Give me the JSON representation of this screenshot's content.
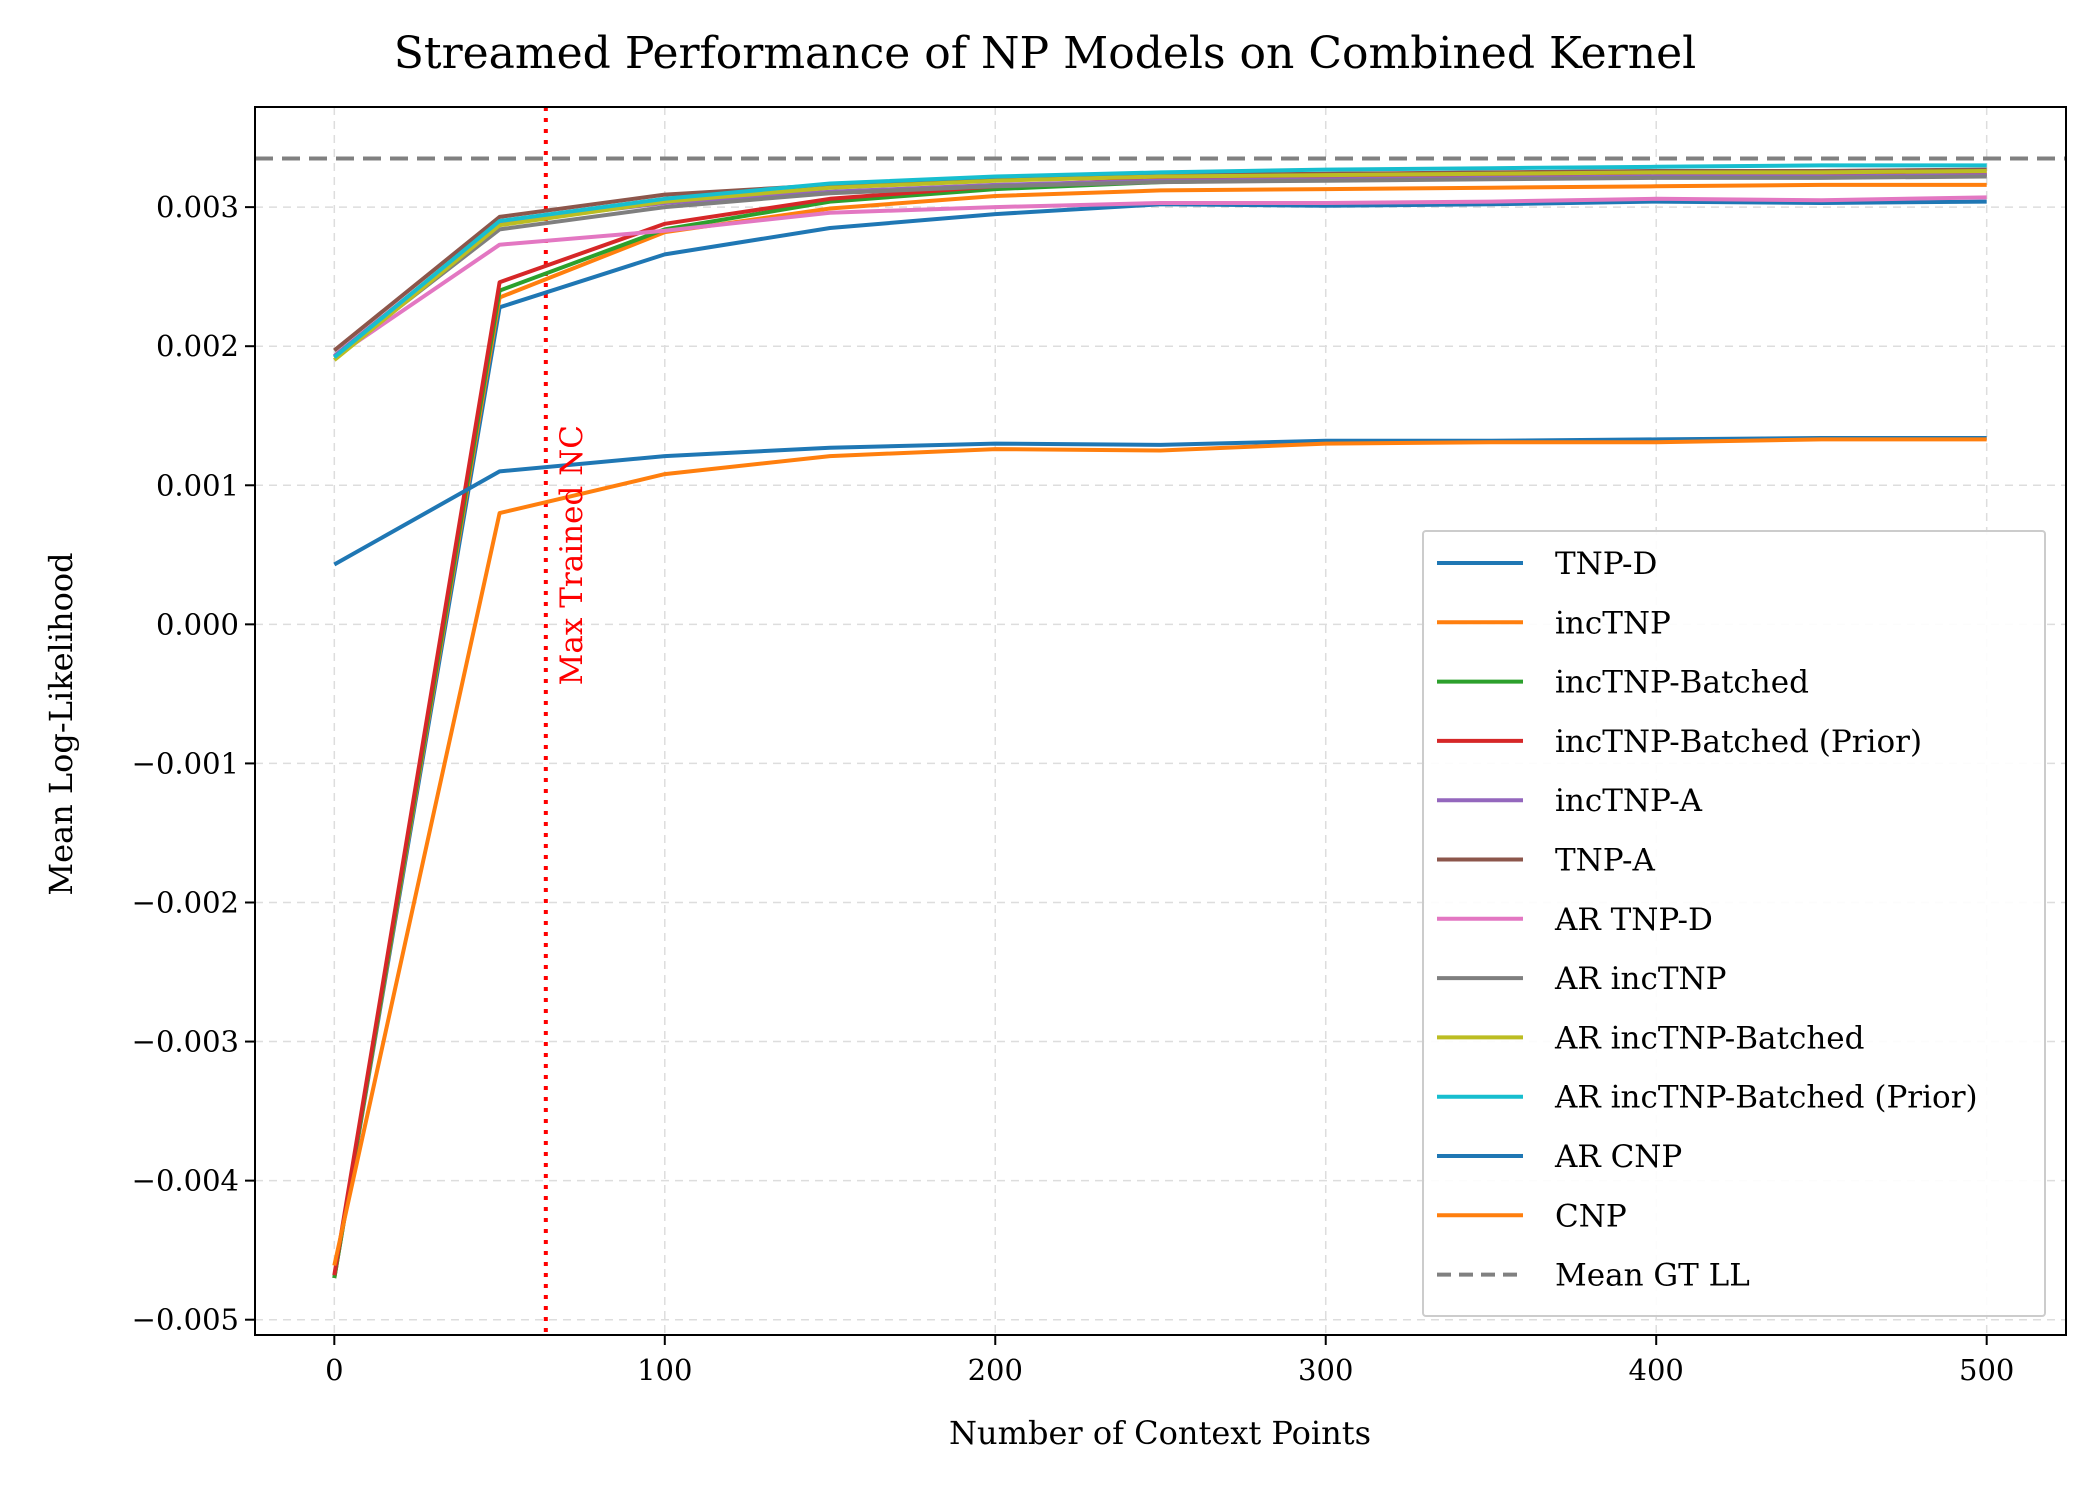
{
  "chart_data": {
    "type": "line",
    "title": "Streamed Performance of NP Models on Combined Kernel",
    "xlabel": "Number of Context Points",
    "ylabel": "Mean Log-Likelihood",
    "xlim": [
      -24,
      524
    ],
    "ylim": [
      -0.00511,
      0.00372
    ],
    "x_ticks": [
      0,
      100,
      200,
      300,
      400,
      500
    ],
    "x_tick_labels": [
      "0",
      "100",
      "200",
      "300",
      "400",
      "500"
    ],
    "y_ticks": [
      -0.005,
      -0.004,
      -0.003,
      -0.002,
      -0.001,
      0.0,
      0.001,
      0.002,
      0.003
    ],
    "y_tick_labels": [
      "−0.005",
      "−0.004",
      "−0.003",
      "−0.002",
      "−0.001",
      "0.000",
      "0.001",
      "0.002",
      "0.003"
    ],
    "grid": true,
    "legend_position": "lower-right",
    "x": [
      0,
      50,
      100,
      150,
      200,
      250,
      300,
      350,
      400,
      450,
      500
    ],
    "series": [
      {
        "name": "TNP-D",
        "color": "#1f77b4",
        "values": [
          -0.0047,
          0.00228,
          0.00266,
          0.00285,
          0.00295,
          0.00302,
          0.00301,
          0.00302,
          0.00304,
          0.00303,
          0.00304
        ]
      },
      {
        "name": "incTNP",
        "color": "#ff7f0e",
        "values": [
          -0.0047,
          0.00235,
          0.00282,
          0.00299,
          0.00308,
          0.00312,
          0.00313,
          0.00314,
          0.00315,
          0.00316,
          0.00316
        ]
      },
      {
        "name": "incTNP-Batched",
        "color": "#2ca02c",
        "values": [
          -0.0047,
          0.0024,
          0.00284,
          0.00304,
          0.00313,
          0.00318,
          0.0032,
          0.00321,
          0.00322,
          0.00322,
          0.00323
        ]
      },
      {
        "name": "incTNP-Batched (Prior)",
        "color": "#d62728",
        "values": [
          -0.00468,
          0.00246,
          0.00288,
          0.00306,
          0.00315,
          0.0032,
          0.00321,
          0.00322,
          0.00323,
          0.00323,
          0.00324
        ]
      },
      {
        "name": "incTNP-A",
        "color": "#9467bd",
        "values": [
          0.00193,
          0.00289,
          0.00303,
          0.00311,
          0.00316,
          0.00319,
          0.0032,
          0.00321,
          0.00322,
          0.00322,
          0.00323
        ]
      },
      {
        "name": "TNP-A",
        "color": "#8c564b",
        "values": [
          0.00197,
          0.00293,
          0.00309,
          0.00316,
          0.00321,
          0.00323,
          0.00324,
          0.00325,
          0.00326,
          0.00326,
          0.00327
        ]
      },
      {
        "name": " AR TNP-D",
        "color": "#e377c2",
        "values": [
          0.00192,
          0.00273,
          0.00283,
          0.00296,
          0.003,
          0.00303,
          0.00303,
          0.00304,
          0.00306,
          0.00305,
          0.00307
        ]
      },
      {
        "name": "AR incTNP",
        "color": "#7f7f7f",
        "values": [
          0.00192,
          0.00284,
          0.003,
          0.0031,
          0.00315,
          0.00318,
          0.00319,
          0.0032,
          0.00321,
          0.00321,
          0.00322
        ]
      },
      {
        "name": "AR incTNP-Batched",
        "color": "#bcbd22",
        "values": [
          0.0019,
          0.00287,
          0.00304,
          0.00314,
          0.00319,
          0.00322,
          0.00323,
          0.00324,
          0.00325,
          0.00325,
          0.00326
        ]
      },
      {
        "name": "AR incTNP-Batched (Prior)",
        "color": "#17becf",
        "values": [
          0.00192,
          0.0029,
          0.00306,
          0.00317,
          0.00322,
          0.00325,
          0.00327,
          0.00328,
          0.00329,
          0.0033,
          0.0033
        ]
      },
      {
        "name": "AR CNP",
        "color": "#1f77b4",
        "values": [
          0.00043,
          0.0011,
          0.00121,
          0.00127,
          0.0013,
          0.00129,
          0.00132,
          0.00132,
          0.00133,
          0.00134,
          0.00134
        ]
      },
      {
        "name": "CNP",
        "color": "#ff7f0e",
        "values": [
          -0.00461,
          0.0008,
          0.00108,
          0.00121,
          0.00126,
          0.00125,
          0.0013,
          0.00131,
          0.00131,
          0.00133,
          0.00133
        ]
      }
    ],
    "reference_lines": [
      {
        "name": "Mean GT LL",
        "orientation": "horizontal",
        "value": 0.00335,
        "color": "#808080",
        "style": "dashed"
      },
      {
        "name": "Max Trained NC",
        "orientation": "vertical",
        "value": 64,
        "color": "#ff0000",
        "style": "dotted"
      }
    ],
    "annotation": "Max Trained NC"
  }
}
